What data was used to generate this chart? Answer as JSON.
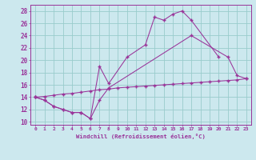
{
  "xlabel": "Windchill (Refroidissement éolien,°C)",
  "bg_color": "#cce8ee",
  "grid_color": "#99cccc",
  "line_color": "#993399",
  "xlim": [
    -0.5,
    23.5
  ],
  "ylim": [
    9.5,
    29.0
  ],
  "xtick_vals": [
    0,
    1,
    2,
    3,
    4,
    5,
    6,
    7,
    8,
    9,
    10,
    11,
    12,
    13,
    14,
    15,
    16,
    17,
    18,
    19,
    20,
    21,
    22,
    23
  ],
  "ytick_vals": [
    10,
    12,
    14,
    16,
    18,
    20,
    22,
    24,
    26,
    28
  ],
  "series": [
    {
      "x": [
        0,
        1,
        2,
        3,
        4,
        5,
        6,
        7,
        8,
        10,
        12,
        13,
        14,
        15,
        16,
        17,
        20
      ],
      "y": [
        14.0,
        13.5,
        12.5,
        12.0,
        11.5,
        11.5,
        10.5,
        19.0,
        16.2,
        20.5,
        22.5,
        27.0,
        26.5,
        27.5,
        28.0,
        26.5,
        20.5
      ]
    },
    {
      "x": [
        0,
        1,
        2,
        3,
        4,
        5,
        6,
        7,
        8,
        17,
        21,
        22,
        23
      ],
      "y": [
        14.0,
        13.5,
        12.5,
        12.0,
        11.5,
        11.5,
        10.5,
        13.5,
        15.5,
        24.0,
        20.5,
        17.5,
        17.0
      ]
    },
    {
      "x": [
        0,
        1,
        2,
        3,
        4,
        5,
        6,
        7,
        8,
        9,
        10,
        11,
        12,
        13,
        14,
        15,
        16,
        17,
        18,
        19,
        20,
        21,
        22,
        23
      ],
      "y": [
        14.0,
        14.1,
        14.3,
        14.5,
        14.6,
        14.8,
        15.0,
        15.2,
        15.3,
        15.5,
        15.6,
        15.7,
        15.8,
        15.9,
        16.0,
        16.1,
        16.2,
        16.3,
        16.4,
        16.5,
        16.6,
        16.7,
        16.8,
        17.0
      ]
    }
  ]
}
